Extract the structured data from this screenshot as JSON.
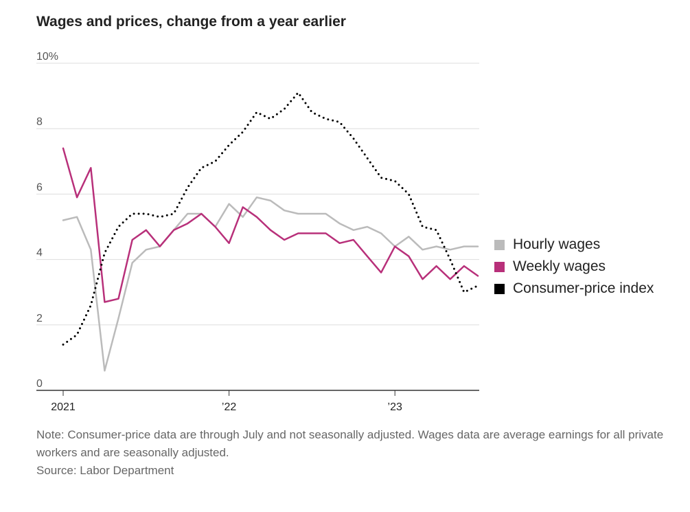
{
  "chart_data": {
    "type": "line",
    "title": "Wages and prices, change from a year earlier",
    "y_ticks": [
      "0",
      "2",
      "4",
      "6",
      "8",
      "10%"
    ],
    "y_tick_values": [
      0,
      2,
      4,
      6,
      8,
      10
    ],
    "ylim": [
      0,
      10
    ],
    "x_ticks": [
      "2021",
      "’22",
      "’23"
    ],
    "x_tick_values": [
      "2021-01",
      "2022-01",
      "2023-01"
    ],
    "xlim": [
      "2021-01",
      "2023-07"
    ],
    "grid": true,
    "legend_position": "right",
    "x": [
      "2021-01",
      "2021-02",
      "2021-03",
      "2021-04",
      "2021-05",
      "2021-06",
      "2021-07",
      "2021-08",
      "2021-09",
      "2021-10",
      "2021-11",
      "2021-12",
      "2022-01",
      "2022-02",
      "2022-03",
      "2022-04",
      "2022-05",
      "2022-06",
      "2022-07",
      "2022-08",
      "2022-09",
      "2022-10",
      "2022-11",
      "2022-12",
      "2023-01",
      "2023-02",
      "2023-03",
      "2023-04",
      "2023-05",
      "2023-06",
      "2023-07"
    ],
    "series": [
      {
        "name": "Hourly wages",
        "color": "#bbbbbb",
        "style": "solid",
        "values": [
          5.2,
          5.3,
          4.3,
          0.6,
          2.2,
          3.9,
          4.3,
          4.4,
          4.9,
          5.4,
          5.4,
          5.0,
          5.7,
          5.3,
          5.9,
          5.8,
          5.5,
          5.4,
          5.4,
          5.4,
          5.1,
          4.9,
          5.0,
          4.8,
          4.4,
          4.7,
          4.3,
          4.4,
          4.3,
          4.4,
          4.4
        ]
      },
      {
        "name": "Weekly wages",
        "color": "#b8307a",
        "style": "solid",
        "values": [
          7.4,
          5.9,
          6.8,
          2.7,
          2.8,
          4.6,
          4.9,
          4.4,
          4.9,
          5.1,
          5.4,
          5.0,
          4.5,
          5.6,
          5.3,
          4.9,
          4.6,
          4.8,
          4.8,
          4.8,
          4.5,
          4.6,
          4.1,
          3.6,
          4.4,
          4.1,
          3.4,
          3.8,
          3.4,
          3.8,
          3.5
        ]
      },
      {
        "name": "Consumer-price index",
        "color": "#000000",
        "style": "dotted",
        "values": [
          1.4,
          1.7,
          2.6,
          4.2,
          5.0,
          5.4,
          5.4,
          5.3,
          5.4,
          6.2,
          6.8,
          7.0,
          7.5,
          7.9,
          8.5,
          8.3,
          8.6,
          9.1,
          8.5,
          8.3,
          8.2,
          7.7,
          7.1,
          6.5,
          6.4,
          6.0,
          5.0,
          4.9,
          4.0,
          3.0,
          3.2
        ]
      }
    ]
  },
  "note": {
    "text": "Note: Consumer-price data are through July and not seasonally adjusted. Wages data are average earnings for all private workers and are seasonally adjusted.",
    "source": "Source: Labor Department"
  }
}
